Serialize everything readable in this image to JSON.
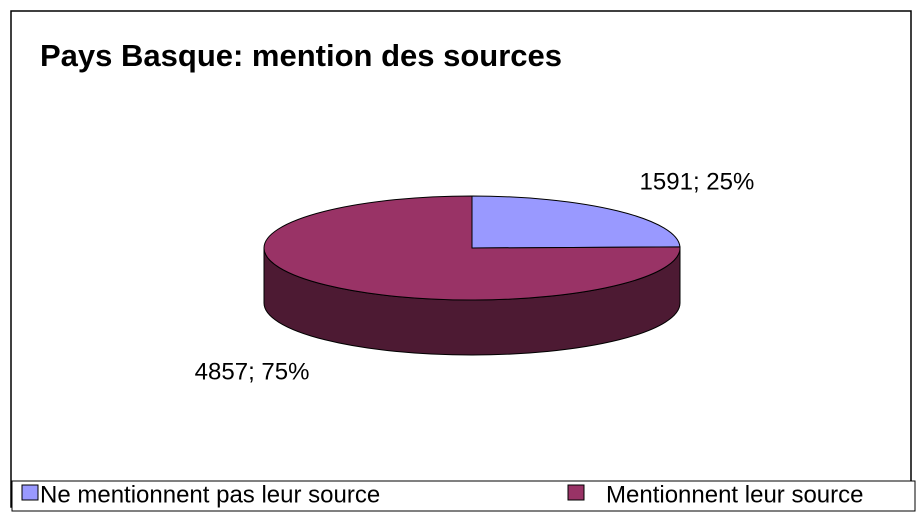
{
  "chart_data": {
    "type": "pie",
    "title": "Pays Basque: mention des sources",
    "categories": [
      "Ne mentionnent pas leur source",
      "Mentionnent leur source"
    ],
    "values": [
      1591,
      4857
    ],
    "value_labels": [
      "1591; 25%",
      "4857; 75%"
    ],
    "colors": [
      "#9999ff",
      "#993366"
    ],
    "legend": "bottom",
    "style": "3d"
  }
}
